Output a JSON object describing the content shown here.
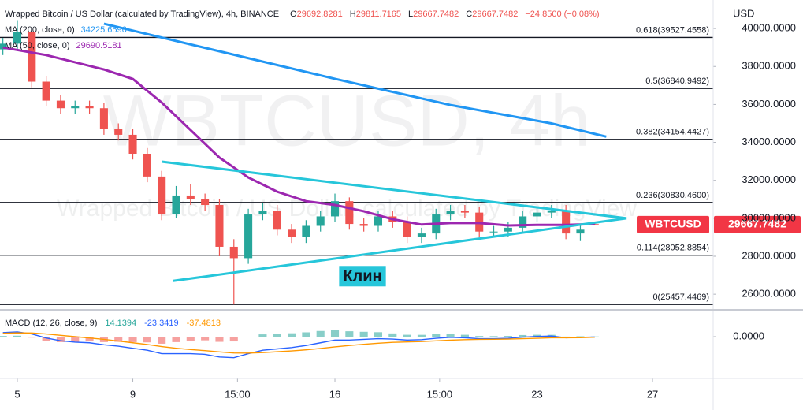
{
  "chart_data": {
    "type": "candlestick",
    "title": "Wrapped Bitcoin / US Dollar (calculated by TradingView), 4h, BINANCE",
    "quote": [
      {
        "letter": "O",
        "text": "29692.8281"
      },
      {
        "letter": "H",
        "text": "29811.7165"
      },
      {
        "letter": "L",
        "text": "29667.7482"
      },
      {
        "letter": "C",
        "text": "29667.7482"
      }
    ],
    "change": "−24.8500 (−0.08%)",
    "watermark": "WBTCUSD, 4h",
    "watermark_sub": "Wrapped Bitcoin / US Dollar, calculated by TradingView",
    "y_axis_title": "USD",
    "up_color": "#26a69a",
    "down_color": "#ef5350",
    "x": [
      4.5,
      5,
      5.5,
      6,
      6.5,
      7,
      7.5,
      8,
      8.5,
      9,
      9.5,
      10,
      10.5,
      11,
      11.5,
      12,
      12.5,
      13,
      13.5,
      14,
      14.5,
      15,
      15.5,
      16,
      16.5,
      17,
      17.5,
      18,
      18.5,
      19,
      19.5,
      20,
      20.5,
      21,
      21.5,
      22,
      22.5,
      23,
      23.5,
      24,
      24.5,
      25
    ],
    "open": [
      38900,
      39200,
      39800,
      37200,
      36200,
      35800,
      35900,
      35800,
      34700,
      34400,
      33400,
      32200,
      30200,
      31200,
      31000,
      30700,
      28500,
      27900,
      30200,
      30400,
      29400,
      29000,
      29600,
      30100,
      30900,
      29700,
      29600,
      30100,
      29800,
      29000,
      29200,
      30200,
      30400,
      30300,
      29300,
      29300,
      29500,
      30100,
      30300,
      30400,
      29200,
      29692.8281
    ],
    "high": [
      39500,
      40400,
      40000,
      37500,
      36500,
      36200,
      36200,
      36100,
      35000,
      34700,
      33700,
      32500,
      31700,
      31800,
      31300,
      31000,
      28900,
      30500,
      30800,
      30700,
      29700,
      29900,
      30400,
      31300,
      31100,
      30000,
      30400,
      30400,
      30100,
      29500,
      30500,
      30700,
      30700,
      30600,
      29600,
      29800,
      30400,
      30600,
      30700,
      30700,
      29600,
      29811.7165
    ],
    "low": [
      38600,
      38900,
      36900,
      35900,
      35500,
      35500,
      35500,
      34400,
      34100,
      33100,
      31900,
      29900,
      30000,
      30700,
      30400,
      28000,
      25457.4469,
      27600,
      29900,
      29100,
      28700,
      28700,
      29300,
      29800,
      29400,
      29300,
      29300,
      29500,
      28700,
      28700,
      28900,
      29900,
      30000,
      29000,
      29000,
      29000,
      29200,
      29800,
      30000,
      28900,
      28800,
      29667.7482
    ],
    "close": [
      39200,
      39800,
      37200,
      36200,
      35800,
      35900,
      35800,
      34700,
      34400,
      33400,
      32200,
      30200,
      31200,
      31000,
      30700,
      28500,
      27900,
      30200,
      30400,
      29400,
      29000,
      29600,
      30100,
      30900,
      29700,
      29600,
      30100,
      29800,
      29000,
      29200,
      30200,
      30400,
      30300,
      29300,
      29300,
      29500,
      30100,
      30300,
      30400,
      29200,
      29400,
      29667.7482
    ],
    "series": [
      {
        "name": "MA (200, close, 0)",
        "value_label": "34225.6596",
        "color": "#2196f3",
        "x": [
          8,
          12,
          16,
          20,
          23.5,
          25.4
        ],
        "values": [
          40250,
          38800,
          37350,
          35970,
          35000,
          34300
        ]
      },
      {
        "name": "MA (50, close, 0)",
        "value_label": "29690.5181",
        "color": "#9c27b0",
        "x": [
          4.5,
          6,
          8,
          9,
          10,
          11,
          12,
          13,
          14,
          15,
          16,
          17,
          18,
          19,
          20,
          21,
          22,
          23,
          24,
          25
        ],
        "values": [
          39000,
          38600,
          37840,
          37340,
          36100,
          34650,
          33200,
          32150,
          31400,
          30900,
          30700,
          30370,
          29950,
          29670,
          29750,
          29750,
          29620,
          29650,
          29650,
          29700
        ]
      }
    ],
    "fib_levels": [
      {
        "value": 39527.4558,
        "label": "0.618(39527.4558)"
      },
      {
        "value": 36840.9492,
        "label": "0.5(36840.9492)"
      },
      {
        "value": 34154.4427,
        "label": "0.382(34154.4427)"
      },
      {
        "value": 30830.46,
        "label": "0.236(30830.4600)"
      },
      {
        "value": 28052.8854,
        "label": "0.114(28052.8854)"
      },
      {
        "value": 25457.4469,
        "label": "0(25457.4469)"
      }
    ],
    "trendline_color": "#26c6da",
    "trendlines": [
      {
        "x": [
          10.0,
          26.1
        ],
        "values": [
          32985,
          30000
        ]
      },
      {
        "x": [
          10.4,
          26.1
        ],
        "values": [
          26700,
          30000
        ]
      }
    ],
    "annotation": "Клин",
    "last_price": {
      "symbol": "WBTCUSD",
      "value": 29667.7482,
      "color": "#f23645"
    },
    "xlim": [
      4.4,
      29.1
    ],
    "xticks": [
      {
        "value": 5,
        "label": "5"
      },
      {
        "value": 9,
        "label": "9"
      },
      {
        "value": 12.625,
        "label": "15:00"
      },
      {
        "value": 16,
        "label": "16"
      },
      {
        "value": 19.625,
        "label": "15:00"
      },
      {
        "value": 23,
        "label": "23"
      },
      {
        "value": 27,
        "label": "27"
      }
    ],
    "ylim": [
      25300,
      41500
    ],
    "yticks": [
      {
        "value": 26000,
        "label": "26000.0000"
      },
      {
        "value": 28000,
        "label": "28000.0000"
      },
      {
        "value": 30000,
        "label": "30000.0000"
      },
      {
        "value": 32000,
        "label": "32000.0000"
      },
      {
        "value": 34000,
        "label": "34000.0000"
      },
      {
        "value": 36000,
        "label": "36000.0000"
      },
      {
        "value": 38000,
        "label": "38000.0000"
      },
      {
        "value": 40000,
        "label": "40000.0000"
      }
    ],
    "macd": {
      "name": "MACD (12, 26, close, 9)",
      "ylim": [
        -1800,
        1800
      ],
      "yticks": [
        {
          "value": 0,
          "label": "0.0000"
        }
      ],
      "hist_up_color": "#26a69a",
      "hist_down_color": "#ef5350",
      "series": [
        {
          "color": "#26a69a",
          "values": [
            50,
            70,
            -70,
            -300,
            -400,
            -400,
            -350,
            -400,
            -380,
            -400,
            -420,
            -520,
            -400,
            -300,
            -270,
            -380,
            -350,
            -40,
            170,
            210,
            250,
            320,
            420,
            500,
            400,
            360,
            330,
            240,
            140,
            135,
            190,
            210,
            140,
            50,
            40,
            55,
            120,
            140,
            135,
            5,
            28,
            14.1394
          ]
        },
        {
          "color": "#2962ff",
          "values": [
            300,
            350,
            200,
            -100,
            -300,
            -400,
            -450,
            -600,
            -700,
            -850,
            -1000,
            -1250,
            -1250,
            -1250,
            -1300,
            -1500,
            -1550,
            -1250,
            -1000,
            -900,
            -800,
            -650,
            -450,
            -250,
            -250,
            -200,
            -150,
            -180,
            -250,
            -220,
            -120,
            -50,
            -80,
            -150,
            -150,
            -120,
            -30,
            20,
            50,
            -80,
            -50,
            -23.3419
          ]
        },
        {
          "color": "#ff9800",
          "values": [
            250,
            280,
            270,
            200,
            100,
            0,
            -100,
            -200,
            -320,
            -450,
            -580,
            -730,
            -850,
            -950,
            -1030,
            -1120,
            -1200,
            -1210,
            -1170,
            -1110,
            -1050,
            -970,
            -870,
            -750,
            -650,
            -560,
            -480,
            -420,
            -390,
            -355,
            -310,
            -260,
            -220,
            -200,
            -190,
            -175,
            -150,
            -120,
            -85,
            -85,
            -78,
            -37.4813
          ]
        }
      ]
    }
  }
}
